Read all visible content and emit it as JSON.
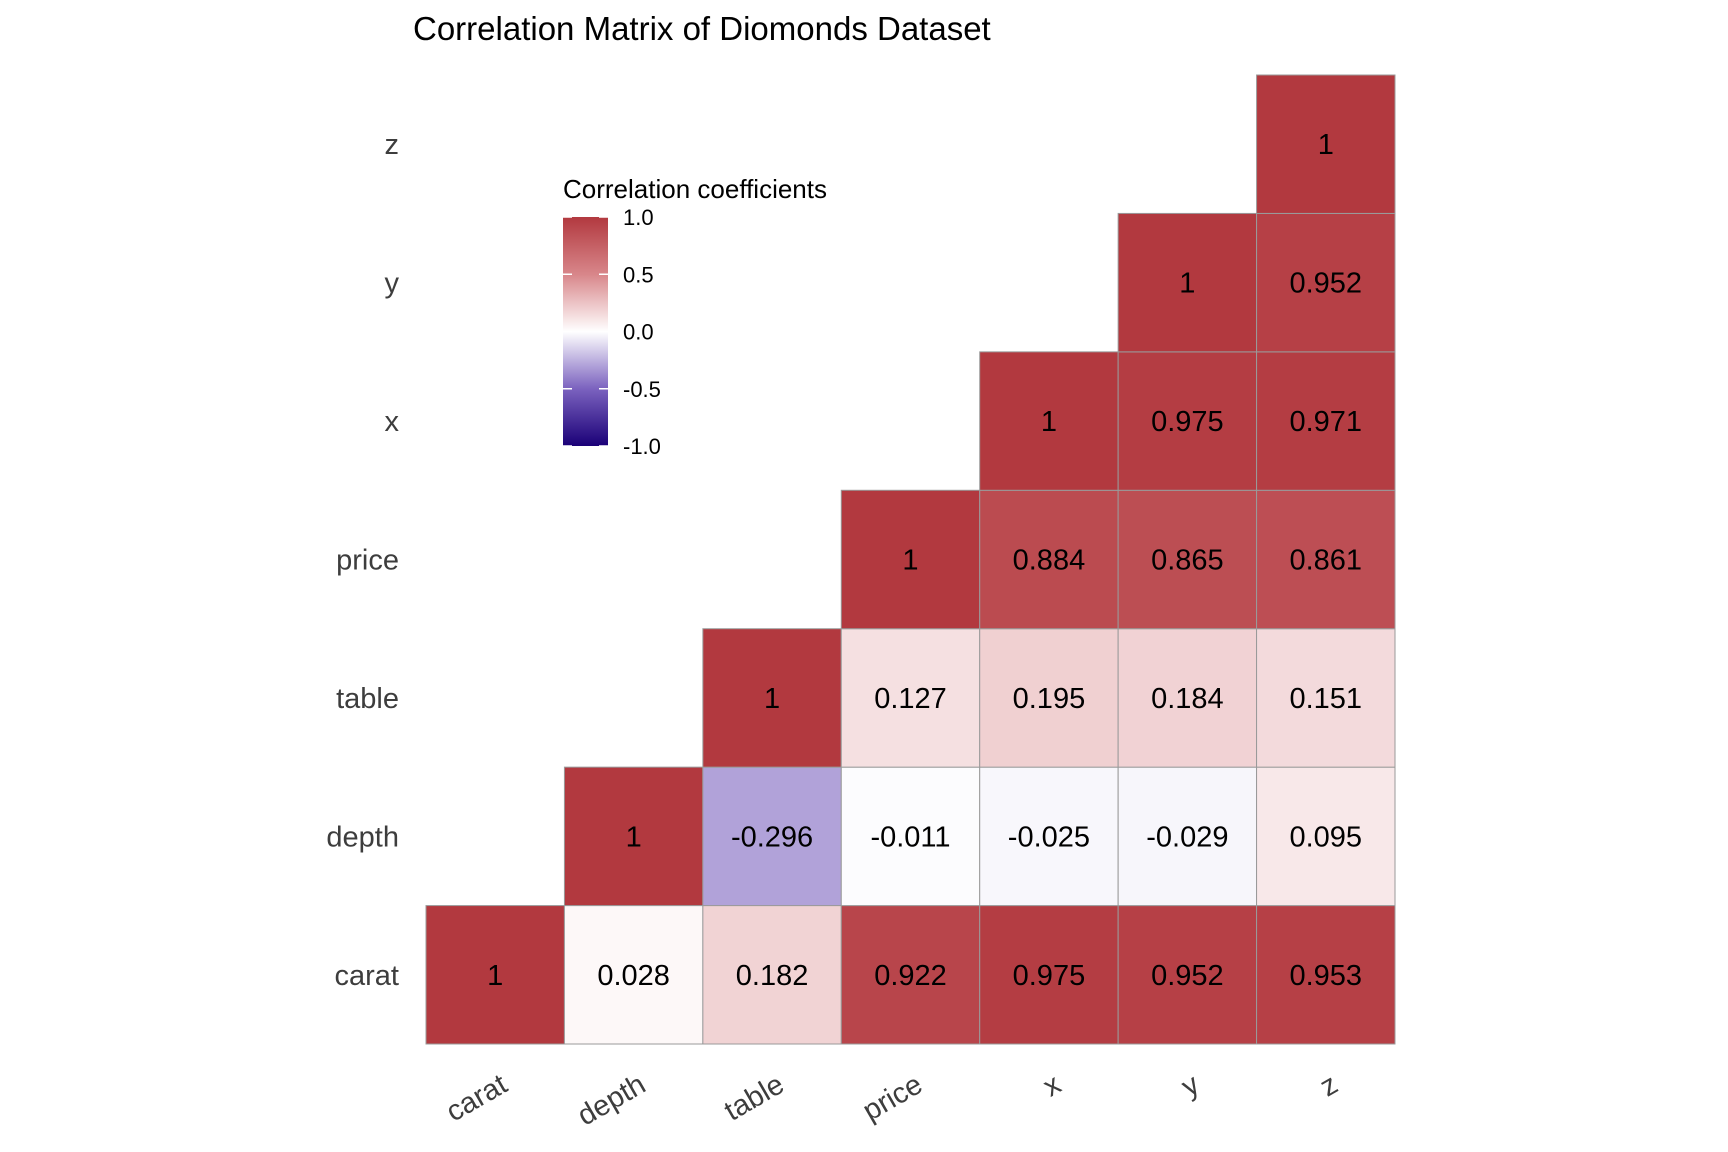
{
  "chart_data": {
    "type": "heatmap",
    "title": "Correlation Matrix of Diomonds Dataset",
    "xlabel": "",
    "ylabel": "",
    "variables": [
      "carat",
      "depth",
      "table",
      "price",
      "x",
      "y",
      "z"
    ],
    "x_tick_labels": [
      "carat",
      "depth",
      "table",
      "price",
      "x",
      "y",
      "z"
    ],
    "y_tick_labels": [
      "carat",
      "depth",
      "table",
      "price",
      "x",
      "y",
      "z"
    ],
    "layout": "upper-triangle (lower-left to upper-right diagonal), values shown in cells",
    "cells": [
      {
        "x": "carat",
        "y": "carat",
        "value": 1,
        "label": "1"
      },
      {
        "x": "depth",
        "y": "carat",
        "value": 0.028,
        "label": "0.028"
      },
      {
        "x": "table",
        "y": "carat",
        "value": 0.182,
        "label": "0.182"
      },
      {
        "x": "price",
        "y": "carat",
        "value": 0.922,
        "label": "0.922"
      },
      {
        "x": "x",
        "y": "carat",
        "value": 0.975,
        "label": "0.975"
      },
      {
        "x": "y",
        "y": "carat",
        "value": 0.952,
        "label": "0.952"
      },
      {
        "x": "z",
        "y": "carat",
        "value": 0.953,
        "label": "0.953"
      },
      {
        "x": "depth",
        "y": "depth",
        "value": 1,
        "label": "1"
      },
      {
        "x": "table",
        "y": "depth",
        "value": -0.296,
        "label": "-0.296"
      },
      {
        "x": "price",
        "y": "depth",
        "value": -0.011,
        "label": "-0.011"
      },
      {
        "x": "x",
        "y": "depth",
        "value": -0.025,
        "label": "-0.025"
      },
      {
        "x": "y",
        "y": "depth",
        "value": -0.029,
        "label": "-0.029"
      },
      {
        "x": "z",
        "y": "depth",
        "value": 0.095,
        "label": "0.095"
      },
      {
        "x": "table",
        "y": "table",
        "value": 1,
        "label": "1"
      },
      {
        "x": "price",
        "y": "table",
        "value": 0.127,
        "label": "0.127"
      },
      {
        "x": "x",
        "y": "table",
        "value": 0.195,
        "label": "0.195"
      },
      {
        "x": "y",
        "y": "table",
        "value": 0.184,
        "label": "0.184"
      },
      {
        "x": "z",
        "y": "table",
        "value": 0.151,
        "label": "0.151"
      },
      {
        "x": "price",
        "y": "price",
        "value": 1,
        "label": "1"
      },
      {
        "x": "x",
        "y": "price",
        "value": 0.884,
        "label": "0.884"
      },
      {
        "x": "y",
        "y": "price",
        "value": 0.865,
        "label": "0.865"
      },
      {
        "x": "z",
        "y": "price",
        "value": 0.861,
        "label": "0.861"
      },
      {
        "x": "x",
        "y": "x",
        "value": 1,
        "label": "1"
      },
      {
        "x": "y",
        "y": "x",
        "value": 0.975,
        "label": "0.975"
      },
      {
        "x": "z",
        "y": "x",
        "value": 0.971,
        "label": "0.971"
      },
      {
        "x": "y",
        "y": "y",
        "value": 1,
        "label": "1"
      },
      {
        "x": "z",
        "y": "y",
        "value": 0.952,
        "label": "0.952"
      },
      {
        "x": "z",
        "y": "z",
        "value": 1,
        "label": "1"
      }
    ],
    "legend": {
      "title": "Correlation coefficients",
      "placement": "inside top-left",
      "range": [
        -1.0,
        1.0
      ],
      "ticks": [
        1.0,
        0.5,
        0.0,
        -0.5,
        -1.0
      ],
      "tick_labels": [
        "1.0",
        "0.5",
        "0.0",
        "-0.5",
        "-1.0"
      ]
    },
    "color_scale": {
      "low": "#1a0077",
      "mid_low": "#7b62bf",
      "mid": "#ffffff",
      "mid_high": "#d8868a",
      "high": "#b2393f"
    },
    "grid": false,
    "cell_border_color": "#9a9a9a"
  }
}
